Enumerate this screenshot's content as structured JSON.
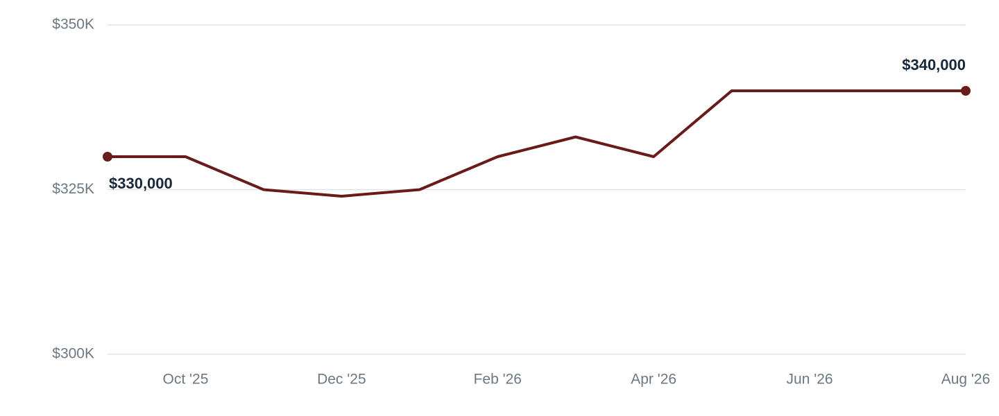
{
  "chart_data": {
    "type": "line",
    "categories": [
      null,
      "Oct '25",
      null,
      "Dec '25",
      null,
      "Feb '26",
      null,
      "Apr '26",
      null,
      "Jun '26",
      null,
      "Aug '26"
    ],
    "values": [
      330000,
      330000,
      325000,
      324000,
      325000,
      330000,
      333000,
      330000,
      340000,
      340000,
      340000,
      340000
    ],
    "value_labels": [
      "$330,000",
      null,
      null,
      null,
      null,
      null,
      null,
      null,
      null,
      null,
      null,
      "$340,000"
    ],
    "color": "#6b1a1a",
    "ylim": [
      300000,
      350000
    ],
    "yticks": [
      {
        "value": 300000,
        "label": "$300K"
      },
      {
        "value": 325000,
        "label": "$325K"
      },
      {
        "value": 350000,
        "label": "$350K"
      }
    ],
    "grid": true
  }
}
